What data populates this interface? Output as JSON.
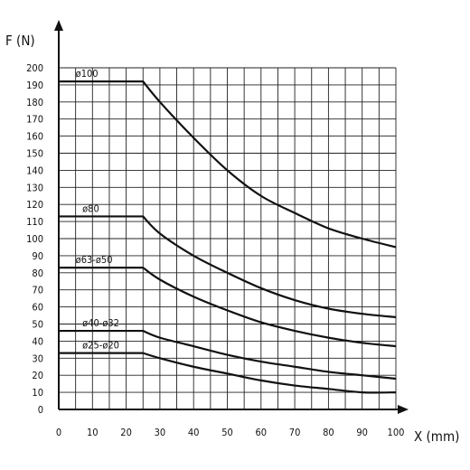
{
  "chart_data": {
    "type": "line",
    "xlabel": "X (mm)",
    "ylabel": "F (N)",
    "xlim": [
      0,
      100
    ],
    "ylim": [
      0,
      200
    ],
    "x_ticks": [
      0,
      10,
      20,
      30,
      40,
      50,
      60,
      70,
      80,
      90,
      100
    ],
    "y_ticks": [
      0,
      10,
      20,
      30,
      40,
      50,
      60,
      70,
      80,
      90,
      100,
      110,
      120,
      130,
      140,
      150,
      160,
      170,
      180,
      190,
      200
    ],
    "x_grid_step": 5,
    "y_grid_step": 10,
    "grid": true,
    "line_color": "#111111",
    "grid_color": "#222222",
    "series": [
      {
        "name": "ø100",
        "x": [
          0,
          25,
          30,
          40,
          50,
          60,
          70,
          80,
          90,
          100
        ],
        "y": [
          192,
          192,
          180,
          159,
          140,
          125,
          115,
          106,
          100,
          95
        ]
      },
      {
        "name": "ø80",
        "x": [
          0,
          25,
          30,
          40,
          50,
          60,
          70,
          80,
          90,
          100
        ],
        "y": [
          113,
          113,
          103,
          90,
          80,
          71,
          64,
          59,
          56,
          54
        ]
      },
      {
        "name": "ø63-ø50",
        "x": [
          0,
          25,
          30,
          40,
          50,
          60,
          70,
          80,
          90,
          100
        ],
        "y": [
          83,
          83,
          76,
          66,
          58,
          51,
          46,
          42,
          39,
          37
        ]
      },
      {
        "name": "ø40-ø32",
        "x": [
          0,
          25,
          30,
          40,
          50,
          60,
          70,
          80,
          90,
          100
        ],
        "y": [
          46,
          46,
          42,
          37,
          32,
          28,
          25,
          22,
          20,
          18
        ]
      },
      {
        "name": "ø25-ø20",
        "x": [
          0,
          25,
          30,
          40,
          50,
          60,
          70,
          80,
          90,
          100
        ],
        "y": [
          33,
          33,
          30,
          25,
          21,
          17,
          14,
          12,
          10,
          10
        ]
      }
    ]
  }
}
